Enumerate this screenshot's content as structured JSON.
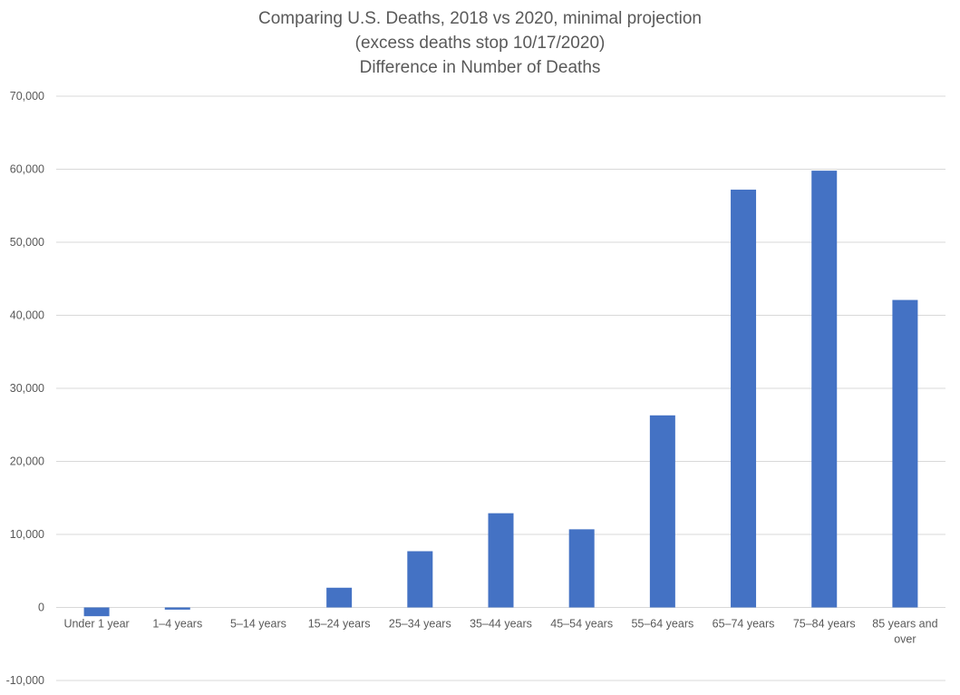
{
  "chart_data": {
    "type": "bar",
    "title_lines": [
      "Comparing U.S. Deaths, 2018 vs 2020, minimal projection",
      "(excess deaths stop 10/17/2020)",
      "Difference in Number of Deaths"
    ],
    "categories": [
      [
        "Under 1 year"
      ],
      [
        "1–4 years"
      ],
      [
        "5–14 years"
      ],
      [
        "15–24 years"
      ],
      [
        "25–34 years"
      ],
      [
        "35–44 years"
      ],
      [
        "45–54 years"
      ],
      [
        "55–64 years"
      ],
      [
        "65–74 years"
      ],
      [
        "75–84 years"
      ],
      [
        "85 years and",
        "over"
      ]
    ],
    "values": [
      -1200,
      -300,
      0,
      2700,
      7700,
      12900,
      10700,
      26300,
      57200,
      59800,
      42100
    ],
    "ylim": [
      -10000,
      70000
    ],
    "yticks": [
      -10000,
      0,
      10000,
      20000,
      30000,
      40000,
      50000,
      60000,
      70000
    ],
    "ytick_labels": [
      "-10,000",
      "0",
      "10,000",
      "20,000",
      "30,000",
      "40,000",
      "50,000",
      "60,000",
      "70,000"
    ],
    "grid": true,
    "bar_color": "#4472C4",
    "grid_color": "#d9d9d9",
    "text_color": "#595959"
  }
}
